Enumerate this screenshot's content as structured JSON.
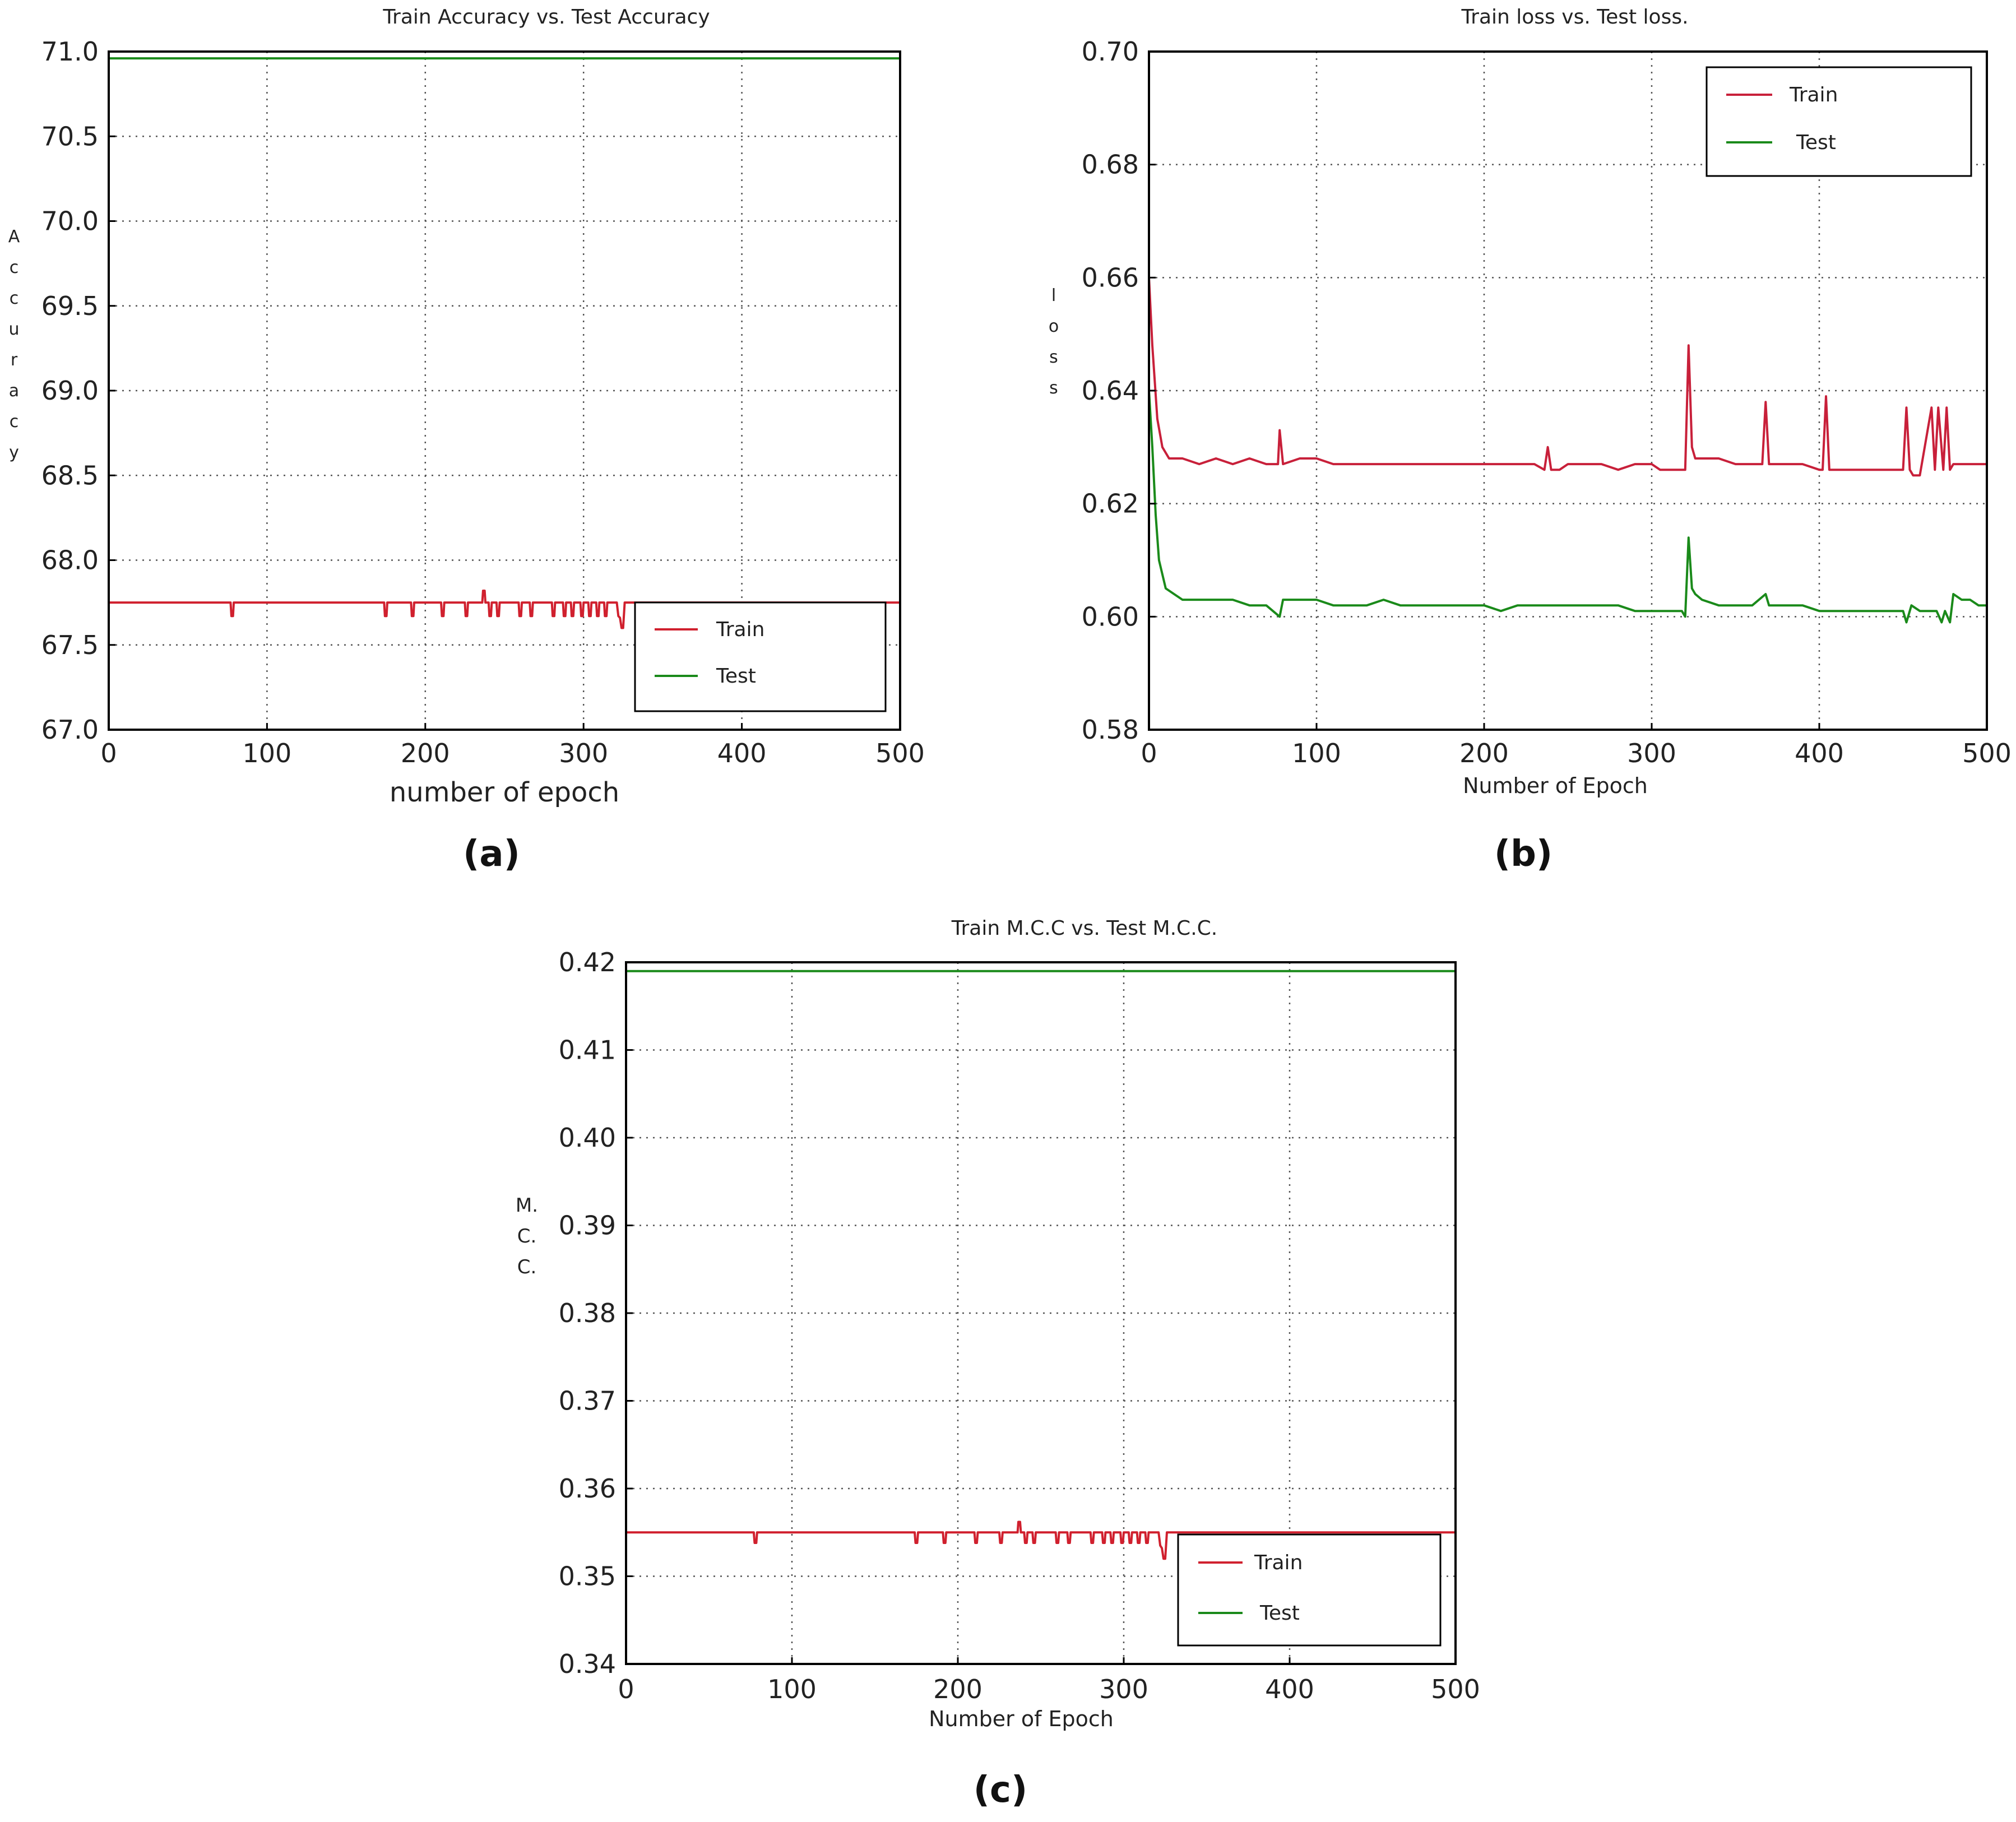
{
  "chart_data": [
    {
      "id": "a",
      "type": "line",
      "title": "Train Accuracy vs. Test Accuracy",
      "xlabel": "number of epoch",
      "ylabel": "Accuracy",
      "caption": "(a)",
      "xlim": [
        0,
        500
      ],
      "ylim": [
        67.0,
        71.0
      ],
      "xticks": [
        "0",
        "100",
        "200",
        "300",
        "400",
        "500"
      ],
      "yticks": [
        "67.0",
        "67.5",
        "68.0",
        "68.5",
        "69.0",
        "69.5",
        "70.0",
        "70.5",
        "71.0"
      ],
      "grid": true,
      "legend": {
        "position": "lower-right",
        "entries": [
          "Train",
          "Test"
        ]
      },
      "colors": {
        "Train": "#d0202e",
        "Test": "#1a8a1a"
      },
      "series": [
        {
          "name": "Train",
          "x": [
            0,
            77,
            77.5,
            78,
            78.5,
            79,
            174,
            174.5,
            175,
            175.5,
            176,
            191,
            191.5,
            192,
            192.5,
            193,
            210,
            210.5,
            211,
            211.5,
            212,
            225,
            225.5,
            226,
            226.5,
            227,
            236,
            236.5,
            237,
            237.5,
            238,
            240,
            240.5,
            241,
            241.5,
            242,
            245,
            245.5,
            246,
            246.5,
            247,
            259,
            259.5,
            260,
            260.5,
            261,
            266,
            266.5,
            267,
            267.5,
            268,
            280,
            280.5,
            281,
            281.5,
            282,
            287,
            287.5,
            288,
            288.5,
            289,
            292,
            292.5,
            293,
            293.5,
            294,
            298,
            298.5,
            299,
            299.5,
            300,
            303,
            303.5,
            304,
            304.5,
            305,
            308,
            308.5,
            309,
            309.5,
            310,
            313,
            313.5,
            314,
            314.5,
            315,
            320,
            321,
            322,
            323,
            324,
            325,
            326,
            500
          ],
          "y": [
            67.75,
            67.75,
            67.67,
            67.67,
            67.67,
            67.75,
            67.75,
            67.67,
            67.67,
            67.67,
            67.75,
            67.75,
            67.67,
            67.67,
            67.67,
            67.75,
            67.75,
            67.67,
            67.67,
            67.67,
            67.75,
            67.75,
            67.67,
            67.67,
            67.67,
            67.75,
            67.75,
            67.82,
            67.82,
            67.82,
            67.75,
            67.75,
            67.67,
            67.67,
            67.67,
            67.75,
            67.75,
            67.67,
            67.67,
            67.67,
            67.75,
            67.75,
            67.67,
            67.67,
            67.67,
            67.75,
            67.75,
            67.67,
            67.67,
            67.67,
            67.75,
            67.75,
            67.67,
            67.67,
            67.67,
            67.75,
            67.75,
            67.67,
            67.67,
            67.67,
            67.75,
            67.75,
            67.67,
            67.67,
            67.67,
            67.75,
            67.75,
            67.67,
            67.67,
            67.67,
            67.75,
            67.75,
            67.67,
            67.67,
            67.67,
            67.75,
            67.75,
            67.67,
            67.67,
            67.67,
            67.75,
            67.75,
            67.67,
            67.67,
            67.67,
            67.75,
            67.75,
            67.75,
            67.67,
            67.66,
            67.6,
            67.6,
            67.75,
            67.75
          ]
        },
        {
          "name": "Test",
          "x": [
            0,
            500
          ],
          "y": [
            70.96,
            70.96
          ]
        }
      ]
    },
    {
      "id": "b",
      "type": "line",
      "title": "Train loss vs. Test loss.",
      "xlabel": "Number of Epoch",
      "ylabel": "loss",
      "caption": "(b)",
      "xlim": [
        0,
        500
      ],
      "ylim": [
        0.58,
        0.7
      ],
      "xticks": [
        "0",
        "100",
        "200",
        "300",
        "400",
        "500"
      ],
      "yticks": [
        "0.58",
        "0.60",
        "0.62",
        "0.64",
        "0.66",
        "0.68",
        "0.70"
      ],
      "grid": true,
      "legend": {
        "position": "top-right",
        "entries": [
          "Train",
          "Test"
        ]
      },
      "colors": {
        "Train": "#c8203a",
        "Test": "#1a8a1a"
      },
      "series": [
        {
          "name": "Train",
          "x": [
            0,
            2,
            5,
            8,
            12,
            20,
            30,
            40,
            50,
            60,
            70,
            77,
            78,
            80,
            90,
            100,
            110,
            120,
            130,
            140,
            150,
            160,
            170,
            180,
            190,
            200,
            210,
            220,
            230,
            236,
            238,
            240,
            245,
            250,
            260,
            270,
            280,
            290,
            300,
            305,
            310,
            315,
            318,
            320,
            322,
            324,
            326,
            330,
            340,
            350,
            360,
            366,
            368,
            370,
            380,
            390,
            400,
            402,
            404,
            406,
            410,
            420,
            430,
            440,
            450,
            452,
            454,
            456,
            460,
            467,
            469,
            471,
            474,
            476,
            478,
            480,
            482,
            484,
            490,
            500
          ],
          "y": [
            0.66,
            0.648,
            0.635,
            0.63,
            0.628,
            0.628,
            0.627,
            0.628,
            0.627,
            0.628,
            0.627,
            0.627,
            0.633,
            0.627,
            0.628,
            0.628,
            0.627,
            0.627,
            0.627,
            0.627,
            0.627,
            0.627,
            0.627,
            0.627,
            0.627,
            0.627,
            0.627,
            0.627,
            0.627,
            0.626,
            0.63,
            0.626,
            0.626,
            0.627,
            0.627,
            0.627,
            0.626,
            0.627,
            0.627,
            0.626,
            0.626,
            0.626,
            0.626,
            0.626,
            0.648,
            0.63,
            0.628,
            0.628,
            0.628,
            0.627,
            0.627,
            0.627,
            0.638,
            0.627,
            0.627,
            0.627,
            0.626,
            0.626,
            0.639,
            0.626,
            0.626,
            0.626,
            0.626,
            0.626,
            0.626,
            0.637,
            0.626,
            0.625,
            0.625,
            0.637,
            0.626,
            0.637,
            0.626,
            0.637,
            0.626,
            0.627,
            0.627,
            0.627,
            0.627,
            0.627
          ]
        },
        {
          "name": "Test",
          "x": [
            0,
            2,
            4,
            6,
            10,
            15,
            20,
            30,
            40,
            50,
            60,
            70,
            78,
            80,
            90,
            100,
            110,
            120,
            130,
            140,
            150,
            160,
            170,
            180,
            190,
            200,
            210,
            220,
            230,
            240,
            250,
            260,
            270,
            280,
            290,
            300,
            305,
            310,
            315,
            318,
            320,
            322,
            324,
            326,
            330,
            340,
            350,
            360,
            368,
            370,
            380,
            390,
            400,
            410,
            420,
            430,
            440,
            450,
            452,
            455,
            460,
            465,
            470,
            473,
            475,
            478,
            480,
            485,
            490,
            495,
            500
          ],
          "y": [
            0.64,
            0.63,
            0.618,
            0.61,
            0.605,
            0.604,
            0.603,
            0.603,
            0.603,
            0.603,
            0.602,
            0.602,
            0.6,
            0.603,
            0.603,
            0.603,
            0.602,
            0.602,
            0.602,
            0.603,
            0.602,
            0.602,
            0.602,
            0.602,
            0.602,
            0.602,
            0.601,
            0.602,
            0.602,
            0.602,
            0.602,
            0.602,
            0.602,
            0.602,
            0.601,
            0.601,
            0.601,
            0.601,
            0.601,
            0.601,
            0.6,
            0.614,
            0.605,
            0.604,
            0.603,
            0.602,
            0.602,
            0.602,
            0.604,
            0.602,
            0.602,
            0.602,
            0.601,
            0.601,
            0.601,
            0.601,
            0.601,
            0.601,
            0.599,
            0.602,
            0.601,
            0.601,
            0.601,
            0.599,
            0.601,
            0.599,
            0.604,
            0.603,
            0.603,
            0.602,
            0.602
          ]
        }
      ]
    },
    {
      "id": "c",
      "type": "line",
      "title": "Train M.C.C vs. Test M.C.C.",
      "xlabel": "Number of Epoch",
      "ylabel": "M.C.C.",
      "caption": "(c)",
      "xlim": [
        0,
        500
      ],
      "ylim": [
        0.34,
        0.42
      ],
      "xticks": [
        "0",
        "100",
        "200",
        "300",
        "400",
        "500"
      ],
      "yticks": [
        "0.34",
        "0.35",
        "0.36",
        "0.37",
        "0.38",
        "0.39",
        "0.40",
        "0.41",
        "0.42"
      ],
      "grid": true,
      "legend": {
        "position": "lower-right",
        "entries": [
          "Train",
          "Test"
        ]
      },
      "colors": {
        "Train": "#d0202e",
        "Test": "#1a8a1a"
      },
      "series": [
        {
          "name": "Train",
          "x": [
            0,
            77,
            77.5,
            78,
            78.5,
            79,
            174,
            174.5,
            175,
            175.5,
            176,
            191,
            191.5,
            192,
            192.5,
            193,
            210,
            210.5,
            211,
            211.5,
            212,
            225,
            225.5,
            226,
            226.5,
            227,
            236,
            236.5,
            237,
            237.5,
            238,
            240,
            240.5,
            241,
            241.5,
            242,
            245,
            245.5,
            246,
            246.5,
            247,
            259,
            259.5,
            260,
            260.5,
            261,
            266,
            266.5,
            267,
            267.5,
            268,
            280,
            280.5,
            281,
            281.5,
            282,
            287,
            287.5,
            288,
            288.5,
            289,
            292,
            292.5,
            293,
            293.5,
            294,
            298,
            298.5,
            299,
            299.5,
            300,
            303,
            303.5,
            304,
            304.5,
            305,
            308,
            308.5,
            309,
            309.5,
            310,
            313,
            313.5,
            314,
            314.5,
            315,
            320,
            321,
            322,
            323,
            324,
            325,
            326,
            500
          ],
          "y": [
            0.355,
            0.355,
            0.3538,
            0.3538,
            0.3538,
            0.355,
            0.355,
            0.3538,
            0.3538,
            0.3538,
            0.355,
            0.355,
            0.3538,
            0.3538,
            0.3538,
            0.355,
            0.355,
            0.3538,
            0.3538,
            0.3538,
            0.355,
            0.355,
            0.3538,
            0.3538,
            0.3538,
            0.355,
            0.355,
            0.3562,
            0.3562,
            0.3562,
            0.355,
            0.355,
            0.3538,
            0.3538,
            0.3538,
            0.355,
            0.355,
            0.3538,
            0.3538,
            0.3538,
            0.355,
            0.355,
            0.3538,
            0.3538,
            0.3538,
            0.355,
            0.355,
            0.3538,
            0.3538,
            0.3538,
            0.355,
            0.355,
            0.3538,
            0.3538,
            0.3538,
            0.355,
            0.355,
            0.3538,
            0.3538,
            0.3538,
            0.355,
            0.355,
            0.3538,
            0.3538,
            0.3538,
            0.355,
            0.355,
            0.3538,
            0.3538,
            0.3538,
            0.355,
            0.355,
            0.3538,
            0.3538,
            0.3538,
            0.355,
            0.355,
            0.3538,
            0.3538,
            0.3538,
            0.355,
            0.355,
            0.3538,
            0.3538,
            0.3538,
            0.355,
            0.355,
            0.355,
            0.3535,
            0.3532,
            0.352,
            0.352,
            0.355,
            0.355
          ]
        },
        {
          "name": "Test",
          "x": [
            0,
            500
          ],
          "y": [
            0.419,
            0.419
          ]
        }
      ]
    }
  ]
}
